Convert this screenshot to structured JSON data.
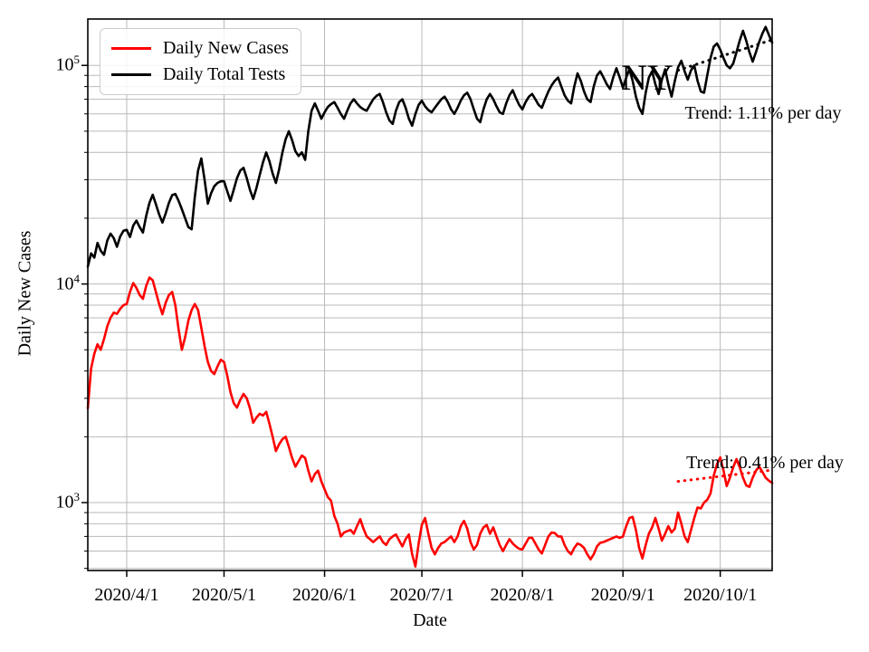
{
  "axes": {
    "xlabel": "Date",
    "ylabel": "Daily New Cases"
  },
  "legend": {
    "items": [
      {
        "label": "Daily New Cases",
        "color": "#ff0000"
      },
      {
        "label": "Daily Total Tests",
        "color": "#000000"
      }
    ]
  },
  "annotations": {
    "trend_tests": "Trend: 1.11% per day",
    "trend_cases": "Trend: 0.41% per day",
    "region_label": "NY"
  },
  "chart_data": {
    "type": "line",
    "title": "",
    "xlabel": "Date",
    "ylabel": "Daily New Cases",
    "y_scale": "log",
    "ylim": [
      489,
      163000
    ],
    "grid": true,
    "grid_color": "#b9b9b9",
    "legend_position": "upper left",
    "x_start_date": "2020/3/20",
    "x_end_date": "2020/10/17",
    "x_ticks": [
      {
        "label": "2020/4/1",
        "day": 12
      },
      {
        "label": "2020/5/1",
        "day": 42
      },
      {
        "label": "2020/6/1",
        "day": 73
      },
      {
        "label": "2020/7/1",
        "day": 103
      },
      {
        "label": "2020/8/1",
        "day": 134
      },
      {
        "label": "2020/9/1",
        "day": 165
      },
      {
        "label": "2020/10/1",
        "day": 195
      }
    ],
    "y_major_ticks": [
      {
        "base": "10",
        "exp": "3",
        "value": 1000
      },
      {
        "base": "10",
        "exp": "4",
        "value": 10000
      },
      {
        "base": "10",
        "exp": "5",
        "value": 100000
      }
    ],
    "y_minor_gridlines": [
      500,
      600,
      700,
      800,
      900,
      2000,
      3000,
      4000,
      5000,
      6000,
      7000,
      8000,
      9000,
      20000,
      30000,
      40000,
      50000,
      60000,
      70000,
      80000,
      90000
    ],
    "series": [
      {
        "name": "Daily New Cases",
        "color": "#ff0000",
        "values": [
          2700,
          4100,
          4800,
          5300,
          5000,
          5600,
          6400,
          7000,
          7400,
          7300,
          7700,
          8000,
          8100,
          9200,
          10100,
          9600,
          8900,
          8550,
          9800,
          10700,
          10400,
          9200,
          8100,
          7270,
          8200,
          8900,
          9200,
          8000,
          6200,
          5000,
          5700,
          6800,
          7600,
          8100,
          7600,
          6300,
          5200,
          4400,
          4000,
          3870,
          4200,
          4500,
          4400,
          3800,
          3200,
          2850,
          2720,
          2950,
          3140,
          3000,
          2700,
          2320,
          2450,
          2550,
          2500,
          2600,
          2300,
          2000,
          1720,
          1850,
          1950,
          2000,
          1800,
          1600,
          1460,
          1550,
          1640,
          1600,
          1400,
          1250,
          1350,
          1400,
          1250,
          1150,
          1060,
          1020,
          870,
          800,
          700,
          730,
          740,
          750,
          720,
          780,
          840,
          760,
          700,
          680,
          660,
          680,
          700,
          660,
          640,
          680,
          700,
          715,
          670,
          630,
          680,
          715,
          580,
          510,
          650,
          790,
          850,
          720,
          620,
          580,
          620,
          650,
          660,
          680,
          700,
          660,
          700,
          780,
          825,
          760,
          660,
          610,
          640,
          720,
          770,
          790,
          720,
          770,
          700,
          640,
          600,
          640,
          680,
          650,
          630,
          615,
          610,
          650,
          690,
          690,
          650,
          610,
          585,
          640,
          700,
          730,
          725,
          700,
          700,
          640,
          600,
          580,
          620,
          650,
          640,
          620,
          580,
          550,
          580,
          630,
          655,
          660,
          670,
          680,
          690,
          700,
          690,
          700,
          780,
          850,
          860,
          750,
          620,
          555,
          640,
          720,
          770,
          850,
          760,
          670,
          720,
          780,
          730,
          760,
          900,
          800,
          700,
          660,
          750,
          850,
          950,
          940,
          1000,
          1030,
          1100,
          1330,
          1500,
          1610,
          1400,
          1190,
          1300,
          1450,
          1580,
          1450,
          1300,
          1200,
          1180,
          1300,
          1400,
          1460,
          1380,
          1300,
          1260,
          1230
        ]
      },
      {
        "name": "Daily Total Tests",
        "color": "#000000",
        "values": [
          12000,
          13800,
          13200,
          15400,
          14200,
          13600,
          15800,
          17000,
          16200,
          14800,
          16500,
          17500,
          17700,
          16400,
          18500,
          19500,
          18200,
          17200,
          20500,
          23500,
          25600,
          23200,
          20800,
          19100,
          21000,
          23500,
          25500,
          25800,
          24000,
          22000,
          20000,
          18200,
          17800,
          25000,
          33000,
          37500,
          30000,
          23300,
          26000,
          28000,
          29000,
          29500,
          29500,
          26500,
          24000,
          27000,
          30500,
          33000,
          34000,
          30500,
          27000,
          24500,
          27500,
          31500,
          36000,
          40000,
          36500,
          32000,
          29000,
          33500,
          40000,
          46000,
          50000,
          45500,
          40500,
          38500,
          40000,
          37000,
          50000,
          62000,
          67000,
          62000,
          57000,
          61000,
          64500,
          66500,
          68000,
          64000,
          60000,
          57000,
          62000,
          67000,
          70000,
          67000,
          64500,
          63000,
          62000,
          66000,
          70000,
          72500,
          74000,
          68000,
          61000,
          56000,
          54000,
          62000,
          68000,
          70000,
          64000,
          57000,
          53000,
          60000,
          66000,
          69000,
          65000,
          62500,
          61000,
          64000,
          67000,
          70000,
          72000,
          68000,
          63000,
          60000,
          64000,
          69000,
          73000,
          75000,
          70000,
          63000,
          57000,
          55000,
          63000,
          70000,
          74000,
          70000,
          65000,
          61000,
          60000,
          67000,
          73000,
          77000,
          71000,
          66000,
          63000,
          68000,
          72000,
          74000,
          70000,
          66000,
          64000,
          70000,
          76000,
          81000,
          85000,
          88000,
          80000,
          73000,
          69000,
          67000,
          80000,
          92000,
          85000,
          76000,
          70000,
          68000,
          80000,
          90000,
          94000,
          88000,
          82000,
          78000,
          88000,
          97000,
          88000,
          79000,
          88000,
          96000,
          85000,
          72000,
          64000,
          60000,
          75000,
          88000,
          94000,
          82000,
          74000,
          86000,
          96000,
          82000,
          72000,
          85000,
          98000,
          105000,
          94000,
          86000,
          95000,
          100000,
          85000,
          76000,
          75000,
          90000,
          108000,
          122000,
          126000,
          118000,
          108000,
          100000,
          97000,
          102000,
          115000,
          130000,
          144000,
          130000,
          115000,
          104000,
          115000,
          128000,
          140000,
          150000,
          138000,
          127000
        ]
      }
    ],
    "trends": [
      {
        "series": "Daily Total Tests",
        "label": "Trend: 1.11% per day",
        "rate_per_day_pct": 1.11,
        "day_start": 182,
        "day_end": 211,
        "value_start": 95000,
        "value_end": 131000,
        "color": "#000000"
      },
      {
        "series": "Daily New Cases",
        "label": "Trend: 0.41% per day",
        "rate_per_day_pct": 0.41,
        "day_start": 182,
        "day_end": 211,
        "value_start": 1250,
        "value_end": 1408,
        "color": "#ff0000"
      }
    ]
  }
}
